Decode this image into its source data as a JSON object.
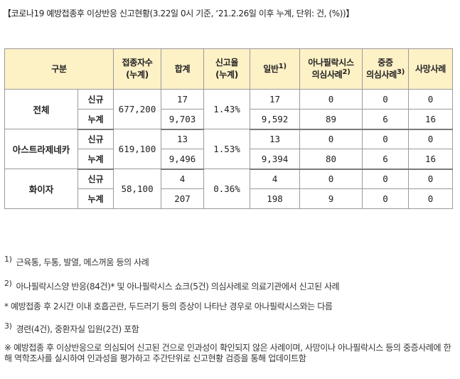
{
  "caption": "【코로나19 예방접종후 이상반응 신고현황(3.22일 0시 기준, ‘21.2.26일 이후 누계, 단위: 건, (%))】",
  "header": {
    "category": "구분",
    "vaccinated_1": "접종자수",
    "vaccinated_2": "(누계)",
    "total": "합계",
    "rate_1": "신고율",
    "rate_2": "(누계)",
    "general": "일반",
    "general_sup": "1)",
    "anaphylaxis_1": "아나필락시스",
    "anaphylaxis_2": "의심사례",
    "anaphylaxis_sup": "2)",
    "severe_1": "중증",
    "severe_2": "의심사례",
    "severe_sup": "3)",
    "death": "사망사례"
  },
  "groups": [
    {
      "name": "전체",
      "vaccinated": "677,200",
      "rate": "1.43%",
      "rows": [
        {
          "type": "신규",
          "total": "17",
          "general": "17",
          "anaphylaxis": "0",
          "severe": "0",
          "death": "0"
        },
        {
          "type": "누계",
          "total": "9,703",
          "general": "9,592",
          "anaphylaxis": "89",
          "severe": "6",
          "death": "16"
        }
      ]
    },
    {
      "name": "아스트라제네카",
      "vaccinated": "619,100",
      "rate": "1.53%",
      "rows": [
        {
          "type": "신규",
          "total": "13",
          "general": "13",
          "anaphylaxis": "0",
          "severe": "0",
          "death": "0"
        },
        {
          "type": "누계",
          "total": "9,496",
          "general": "9,394",
          "anaphylaxis": "80",
          "severe": "6",
          "death": "16"
        }
      ]
    },
    {
      "name": "화이자",
      "vaccinated": "58,100",
      "rate": "0.36%",
      "rows": [
        {
          "type": "신규",
          "total": "4",
          "general": "4",
          "anaphylaxis": "0",
          "severe": "0",
          "death": "0"
        },
        {
          "type": "누계",
          "total": "207",
          "general": "198",
          "anaphylaxis": "9",
          "severe": "0",
          "death": "0"
        }
      ]
    }
  ],
  "notes": {
    "n1_mark": "1)",
    "n1": "근육통, 두통, 발열, 메스꺼움 등의 사례",
    "n2_mark": "2)",
    "n2": "아나필락시스양 반응(84건)* 및 아나필락시스 쇼크(5건) 의심사례로 의료기관에서 신고된 사례",
    "n2_star": "*  예방접종 후 2시간 이내 호흡곤란, 두드러기 등의 증상이 나타난 경우로 아나필락시스와는 다름",
    "n3_mark": "3)",
    "n3": "경련(4건), 중환자실 입원(2건) 포함",
    "n4": "※ 예방접종 후 이상반응으로 의심되어 신고된 건으로 인과성이 확인되지 않은 사례이며, 사망이나 아나필락시스 등의 중증사례에 한해 역학조사를 실시하여 인과성을 평가하고 주간단위로 신고현황 검증을 통해 업데이트함"
  }
}
